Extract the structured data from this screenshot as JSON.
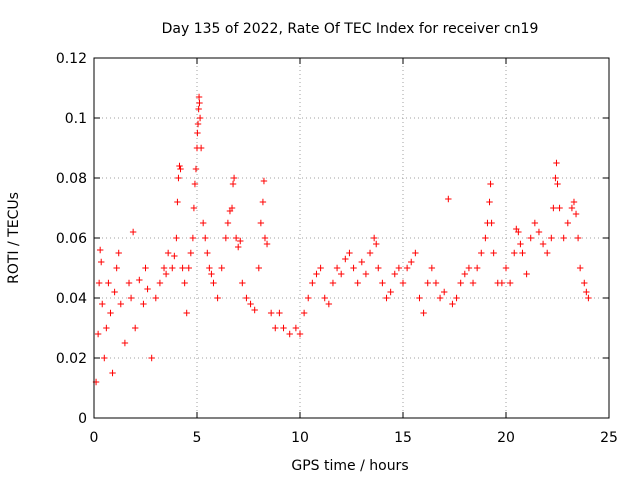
{
  "chart_data": {
    "type": "scatter",
    "title": "Day 135 of 2022, Rate Of TEC Index for receiver cn19",
    "xlabel": "GPS time / hours",
    "ylabel": "ROTI / TECUs",
    "xlim": [
      0,
      25
    ],
    "ylim": [
      0,
      0.12
    ],
    "x_ticks": [
      "0",
      "5",
      "10",
      "15",
      "20",
      "25"
    ],
    "y_ticks": [
      "0",
      "0.02",
      "0.04",
      "0.06",
      "0.08",
      "0.1",
      "0.12"
    ],
    "grid": true,
    "marker": "+",
    "series": [
      {
        "color": "#ff0000",
        "points": [
          [
            0.1,
            0.012
          ],
          [
            0.2,
            0.028
          ],
          [
            0.25,
            0.045
          ],
          [
            0.3,
            0.056
          ],
          [
            0.35,
            0.052
          ],
          [
            0.4,
            0.038
          ],
          [
            0.5,
            0.02
          ],
          [
            0.6,
            0.03
          ],
          [
            0.7,
            0.045
          ],
          [
            0.8,
            0.035
          ],
          [
            0.9,
            0.015
          ],
          [
            1.0,
            0.042
          ],
          [
            1.1,
            0.05
          ],
          [
            1.2,
            0.055
          ],
          [
            1.3,
            0.038
          ],
          [
            1.5,
            0.025
          ],
          [
            1.7,
            0.045
          ],
          [
            1.8,
            0.04
          ],
          [
            1.9,
            0.062
          ],
          [
            2.0,
            0.03
          ],
          [
            2.2,
            0.046
          ],
          [
            2.4,
            0.038
          ],
          [
            2.5,
            0.05
          ],
          [
            2.6,
            0.043
          ],
          [
            2.8,
            0.02
          ],
          [
            3.0,
            0.04
          ],
          [
            3.2,
            0.045
          ],
          [
            3.4,
            0.05
          ],
          [
            3.5,
            0.048
          ],
          [
            3.6,
            0.055
          ],
          [
            3.8,
            0.05
          ],
          [
            3.9,
            0.054
          ],
          [
            4.0,
            0.06
          ],
          [
            4.05,
            0.072
          ],
          [
            4.1,
            0.08
          ],
          [
            4.15,
            0.084
          ],
          [
            4.2,
            0.083
          ],
          [
            4.3,
            0.05
          ],
          [
            4.4,
            0.045
          ],
          [
            4.5,
            0.035
          ],
          [
            4.6,
            0.05
          ],
          [
            4.7,
            0.055
          ],
          [
            4.8,
            0.06
          ],
          [
            4.85,
            0.07
          ],
          [
            4.9,
            0.078
          ],
          [
            4.95,
            0.083
          ],
          [
            5.0,
            0.09
          ],
          [
            5.02,
            0.095
          ],
          [
            5.05,
            0.098
          ],
          [
            5.08,
            0.103
          ],
          [
            5.1,
            0.107
          ],
          [
            5.12,
            0.105
          ],
          [
            5.15,
            0.1
          ],
          [
            5.2,
            0.09
          ],
          [
            5.3,
            0.065
          ],
          [
            5.4,
            0.06
          ],
          [
            5.5,
            0.055
          ],
          [
            5.6,
            0.05
          ],
          [
            5.7,
            0.048
          ],
          [
            5.8,
            0.045
          ],
          [
            6.0,
            0.04
          ],
          [
            6.2,
            0.05
          ],
          [
            6.4,
            0.06
          ],
          [
            6.5,
            0.065
          ],
          [
            6.6,
            0.069
          ],
          [
            6.7,
            0.07
          ],
          [
            6.75,
            0.078
          ],
          [
            6.8,
            0.08
          ],
          [
            6.9,
            0.06
          ],
          [
            7.0,
            0.057
          ],
          [
            7.1,
            0.059
          ],
          [
            7.2,
            0.045
          ],
          [
            7.4,
            0.04
          ],
          [
            7.6,
            0.038
          ],
          [
            7.8,
            0.036
          ],
          [
            8.0,
            0.05
          ],
          [
            8.1,
            0.065
          ],
          [
            8.2,
            0.072
          ],
          [
            8.25,
            0.079
          ],
          [
            8.3,
            0.06
          ],
          [
            8.4,
            0.058
          ],
          [
            8.6,
            0.035
          ],
          [
            8.8,
            0.03
          ],
          [
            9.0,
            0.035
          ],
          [
            9.2,
            0.03
          ],
          [
            9.5,
            0.028
          ],
          [
            9.8,
            0.03
          ],
          [
            10.0,
            0.028
          ],
          [
            10.2,
            0.035
          ],
          [
            10.4,
            0.04
          ],
          [
            10.6,
            0.045
          ],
          [
            10.8,
            0.048
          ],
          [
            11.0,
            0.05
          ],
          [
            11.2,
            0.04
          ],
          [
            11.4,
            0.038
          ],
          [
            11.6,
            0.045
          ],
          [
            11.8,
            0.05
          ],
          [
            12.0,
            0.048
          ],
          [
            12.2,
            0.053
          ],
          [
            12.4,
            0.055
          ],
          [
            12.6,
            0.05
          ],
          [
            12.8,
            0.045
          ],
          [
            13.0,
            0.052
          ],
          [
            13.2,
            0.048
          ],
          [
            13.4,
            0.055
          ],
          [
            13.6,
            0.06
          ],
          [
            13.7,
            0.058
          ],
          [
            13.8,
            0.05
          ],
          [
            14.0,
            0.045
          ],
          [
            14.2,
            0.04
          ],
          [
            14.4,
            0.042
          ],
          [
            14.6,
            0.048
          ],
          [
            14.8,
            0.05
          ],
          [
            15.0,
            0.045
          ],
          [
            15.2,
            0.05
          ],
          [
            15.4,
            0.052
          ],
          [
            15.6,
            0.055
          ],
          [
            15.8,
            0.04
          ],
          [
            16.0,
            0.035
          ],
          [
            16.2,
            0.045
          ],
          [
            16.4,
            0.05
          ],
          [
            16.6,
            0.045
          ],
          [
            16.8,
            0.04
          ],
          [
            17.0,
            0.042
          ],
          [
            17.2,
            0.073
          ],
          [
            17.4,
            0.038
          ],
          [
            17.6,
            0.04
          ],
          [
            17.8,
            0.045
          ],
          [
            18.0,
            0.048
          ],
          [
            18.2,
            0.05
          ],
          [
            18.4,
            0.045
          ],
          [
            18.6,
            0.05
          ],
          [
            18.8,
            0.055
          ],
          [
            19.0,
            0.06
          ],
          [
            19.1,
            0.065
          ],
          [
            19.2,
            0.072
          ],
          [
            19.25,
            0.078
          ],
          [
            19.3,
            0.065
          ],
          [
            19.4,
            0.055
          ],
          [
            19.6,
            0.045
          ],
          [
            19.8,
            0.045
          ],
          [
            20.0,
            0.05
          ],
          [
            20.2,
            0.045
          ],
          [
            20.4,
            0.055
          ],
          [
            20.5,
            0.063
          ],
          [
            20.6,
            0.062
          ],
          [
            20.7,
            0.058
          ],
          [
            20.8,
            0.055
          ],
          [
            21.0,
            0.048
          ],
          [
            21.2,
            0.06
          ],
          [
            21.4,
            0.065
          ],
          [
            21.6,
            0.062
          ],
          [
            21.8,
            0.058
          ],
          [
            22.0,
            0.055
          ],
          [
            22.2,
            0.06
          ],
          [
            22.3,
            0.07
          ],
          [
            22.4,
            0.08
          ],
          [
            22.45,
            0.085
          ],
          [
            22.5,
            0.078
          ],
          [
            22.6,
            0.07
          ],
          [
            22.8,
            0.06
          ],
          [
            23.0,
            0.065
          ],
          [
            23.2,
            0.07
          ],
          [
            23.3,
            0.072
          ],
          [
            23.4,
            0.068
          ],
          [
            23.5,
            0.06
          ],
          [
            23.6,
            0.05
          ],
          [
            23.8,
            0.045
          ],
          [
            23.9,
            0.042
          ],
          [
            24.0,
            0.04
          ]
        ]
      }
    ]
  }
}
